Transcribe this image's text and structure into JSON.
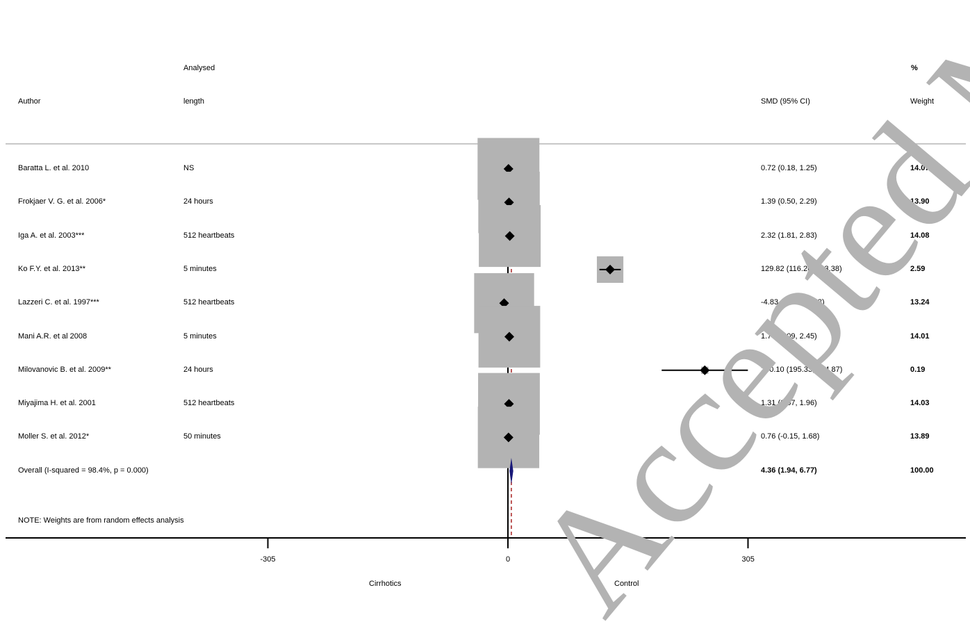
{
  "headers": {
    "author": "Author",
    "analysed_line1": "Analysed",
    "analysed_line2": "length",
    "smd": "SMD (95% CI)",
    "weight_line1": "%",
    "weight_line2": "Weight"
  },
  "note": "NOTE: Weights are from random effects analysis",
  "watermark": "Accepted Manuscript",
  "colors": {
    "box": "#b3b3b3",
    "marker": "#000000",
    "overall_diamond": "#1a1a7a",
    "overall_line": "#b03030",
    "watermark": "#b3b3b3"
  },
  "chart_data": {
    "type": "forest",
    "xlabel_left": "Cirrhotics",
    "xlabel_right": "Control",
    "xlim": [
      -305,
      305
    ],
    "ticks": [
      {
        "value": -305,
        "label": "-305"
      },
      {
        "value": 0,
        "label": "0"
      },
      {
        "value": 305,
        "label": "305"
      }
    ],
    "studies": [
      {
        "author": "Baratta L. et al. 2010",
        "length": "NS",
        "smd": 0.72,
        "lo": 0.18,
        "hi": 1.25,
        "ci_text": "0.72 (0.18, 1.25)",
        "weight": 14.07,
        "weight_text": "14.07"
      },
      {
        "author": "Frokjaer V. G. et al. 2006*",
        "length": "24 hours",
        "smd": 1.39,
        "lo": 0.5,
        "hi": 2.29,
        "ci_text": "1.39 (0.50, 2.29)",
        "weight": 13.9,
        "weight_text": "13.90"
      },
      {
        "author": "Iga A. et al. 2003***",
        "length": "512 heartbeats",
        "smd": 2.32,
        "lo": 1.81,
        "hi": 2.83,
        "ci_text": "2.32 (1.81, 2.83)",
        "weight": 14.08,
        "weight_text": "14.08"
      },
      {
        "author": "Ko F.Y. et al. 2013**",
        "length": "5 minutes",
        "smd": 129.82,
        "lo": 116.26,
        "hi": 143.38,
        "ci_text": "129.82 (116.26, 143.38)",
        "weight": 2.59,
        "weight_text": "2.59"
      },
      {
        "author": "Lazzeri C. et al. 1997***",
        "length": "512 heartbeats",
        "smd": -4.83,
        "lo": -6.52,
        "hi": -3.13,
        "ci_text": "-4.83 (-6.52, -3.13)",
        "weight": 13.24,
        "weight_text": "13.24"
      },
      {
        "author": "Mani A.R. et al 2008",
        "length": "5 minutes",
        "smd": 1.77,
        "lo": 1.09,
        "hi": 2.45,
        "ci_text": "1.77 (1.09, 2.45)",
        "weight": 14.01,
        "weight_text": "14.01"
      },
      {
        "author": "Milovanovic B. et al. 2009**",
        "length": "24 hours",
        "smd": 250.1,
        "lo": 195.33,
        "hi": 304.87,
        "ci_text": "250.10 (195.33, 304.87)",
        "weight": 0.19,
        "weight_text": "0.19"
      },
      {
        "author": "Miyajima H. et al. 2001",
        "length": "512 heartbeats",
        "smd": 1.31,
        "lo": 0.67,
        "hi": 1.96,
        "ci_text": "1.31 (0.67, 1.96)",
        "weight": 14.03,
        "weight_text": "14.03"
      },
      {
        "author": "Moller S. et al. 2012*",
        "length": "50 minutes",
        "smd": 0.76,
        "lo": -0.15,
        "hi": 1.68,
        "ci_text": "0.76 (-0.15, 1.68)",
        "weight": 13.89,
        "weight_text": "13.89"
      }
    ],
    "overall": {
      "label": "Overall  (I-squared = 98.4%, p = 0.000)",
      "smd": 4.36,
      "lo": 1.94,
      "hi": 6.77,
      "ci_text": "4.36 (1.94, 6.77)",
      "weight_text": "100.00"
    }
  }
}
